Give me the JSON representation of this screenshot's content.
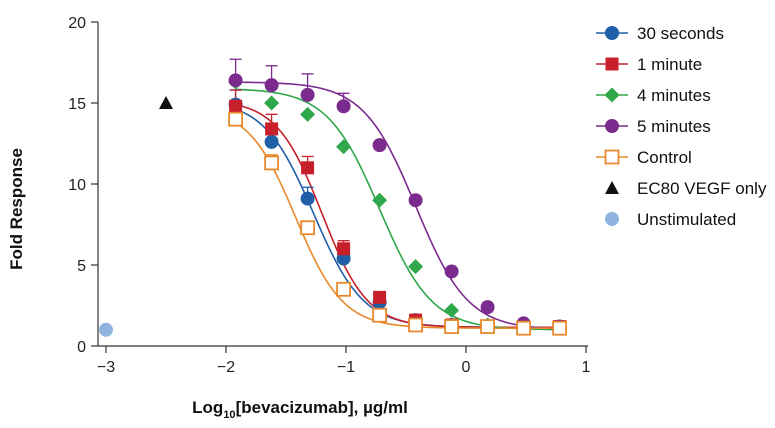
{
  "chart_data": {
    "type": "scatter",
    "xlabel": "Log10[bevacizumab], µg/ml",
    "xlabel_main": "Log",
    "xlabel_sub": "10",
    "xlabel_rest": "[bevacizumab], µg/ml",
    "ylabel": "Fold Response",
    "xlim": [
      -3.0,
      1.0
    ],
    "ylim": [
      0,
      20
    ],
    "x_ticks": [
      -3,
      -2,
      -1,
      0,
      1
    ],
    "x_tick_labels": [
      "−3",
      "−2",
      "−1",
      "0",
      "1"
    ],
    "y_ticks": [
      0,
      5,
      10,
      15,
      20
    ],
    "y_tick_labels": [
      "0",
      "5",
      "10",
      "15",
      "20"
    ],
    "grid": false,
    "legend_position": "right",
    "series": [
      {
        "name": "30 seconds",
        "color": "#1f5fa8",
        "marker": "circle",
        "filled": true,
        "x": [
          -1.92,
          -1.62,
          -1.32,
          -1.02,
          -0.72,
          -0.42,
          -0.12,
          0.18,
          0.48,
          0.78
        ],
        "y": [
          14.9,
          12.6,
          9.1,
          5.4,
          2.7,
          1.6,
          1.3,
          1.2,
          1.2,
          1.1
        ],
        "err": [
          0.9,
          0.8,
          0.7,
          0.4,
          0,
          0,
          0,
          0,
          0,
          0
        ],
        "fit": {
          "top": 15.2,
          "bottom": 1.15,
          "ec50": -1.27,
          "hill": 2.1
        }
      },
      {
        "name": "1 minute",
        "color": "#c8202a",
        "marker": "square",
        "filled": true,
        "x": [
          -1.92,
          -1.62,
          -1.32,
          -1.02,
          -0.72,
          -0.42,
          -0.12,
          0.18,
          0.48,
          0.78
        ],
        "y": [
          14.8,
          13.4,
          11.0,
          6.0,
          3.0,
          1.6,
          1.3,
          1.2,
          1.1,
          1.2
        ],
        "err": [
          1.0,
          0.9,
          0.7,
          0.5,
          0,
          0,
          0,
          0,
          0,
          0
        ],
        "fit": {
          "top": 15.2,
          "bottom": 1.15,
          "ec50": -1.2,
          "hill": 2.3
        }
      },
      {
        "name": "4 minutes",
        "color": "#2ea84a",
        "marker": "diamond",
        "filled": true,
        "x": [
          -1.92,
          -1.62,
          -1.32,
          -1.02,
          -0.72,
          -0.42,
          -0.12,
          0.18,
          0.48,
          0.78
        ],
        "y": [
          16.3,
          15.0,
          14.3,
          12.3,
          9.0,
          4.9,
          2.2,
          1.3,
          1.2,
          1.1
        ],
        "err": [
          0,
          0,
          0,
          0,
          0,
          0,
          0,
          0,
          0,
          0
        ],
        "fit": {
          "top": 15.9,
          "bottom": 1.0,
          "ec50": -0.72,
          "hill": 2.0
        }
      },
      {
        "name": "5 minutes",
        "color": "#7b2a8e",
        "marker": "circle",
        "filled": true,
        "x": [
          -1.92,
          -1.62,
          -1.32,
          -1.02,
          -0.72,
          -0.42,
          -0.12,
          0.18,
          0.48,
          0.78
        ],
        "y": [
          16.4,
          16.1,
          15.5,
          14.8,
          12.4,
          9.0,
          4.6,
          2.4,
          1.4,
          1.2
        ],
        "err": [
          1.3,
          1.2,
          1.3,
          0.8,
          0,
          0,
          0,
          0,
          0,
          0
        ],
        "fit": {
          "top": 16.3,
          "bottom": 1.0,
          "ec50": -0.42,
          "hill": 2.0
        }
      },
      {
        "name": "Control",
        "color": "#e8892b",
        "marker": "square",
        "filled": false,
        "x": [
          -1.92,
          -1.62,
          -1.32,
          -1.02,
          -0.72,
          -0.42,
          -0.12,
          0.18,
          0.48,
          0.78
        ],
        "y": [
          14.0,
          11.3,
          7.3,
          3.5,
          1.9,
          1.3,
          1.2,
          1.2,
          1.1,
          1.1
        ],
        "err": [
          0.6,
          0.5,
          0,
          0,
          0,
          0,
          0,
          0,
          0,
          0
        ],
        "fit": {
          "top": 14.8,
          "bottom": 1.1,
          "ec50": -1.42,
          "hill": 2.2
        }
      },
      {
        "name": "EC80 VEGF only",
        "color": "#111111",
        "marker": "triangle",
        "filled": true,
        "x": [
          -2.5
        ],
        "y": [
          15.0
        ],
        "err": [
          0
        ]
      },
      {
        "name": "Unstimulated",
        "color": "#8fb3de",
        "marker": "circle",
        "filled": true,
        "x": [
          -3.0
        ],
        "y": [
          1.0
        ],
        "err": [
          0
        ]
      }
    ]
  }
}
